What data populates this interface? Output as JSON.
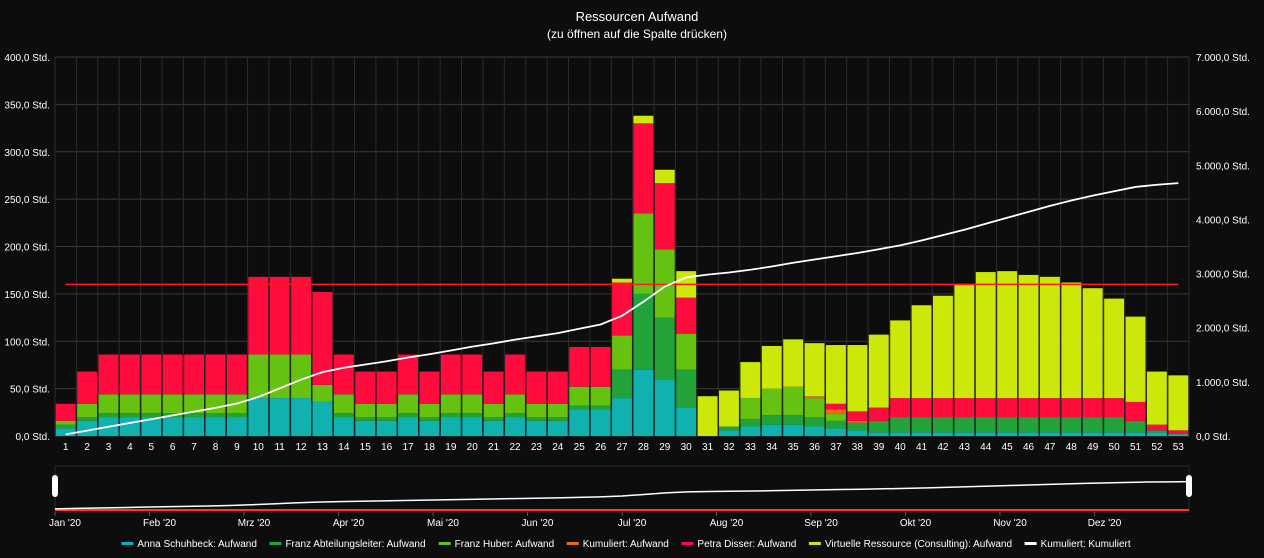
{
  "chart_data": {
    "type": "bar",
    "title": "Ressourcen Aufwand",
    "subtitle": "(zu öffnen auf die Spalte drücken)",
    "categories": [
      "1",
      "2",
      "3",
      "4",
      "5",
      "6",
      "7",
      "8",
      "9",
      "10",
      "11",
      "12",
      "13",
      "14",
      "15",
      "16",
      "17",
      "18",
      "19",
      "20",
      "21",
      "22",
      "23",
      "24",
      "25",
      "26",
      "27",
      "28",
      "29",
      "30",
      "31",
      "32",
      "33",
      "34",
      "35",
      "36",
      "37",
      "38",
      "39",
      "40",
      "41",
      "42",
      "43",
      "44",
      "45",
      "46",
      "47",
      "48",
      "49",
      "50",
      "51",
      "52",
      "53"
    ],
    "y_left": {
      "min": 0,
      "max": 400,
      "ticks": [
        {
          "value": 0,
          "label": "0,0 Std."
        },
        {
          "value": 50,
          "label": "50,0 Std."
        },
        {
          "value": 100,
          "label": "100,0 Std."
        },
        {
          "value": 150,
          "label": "150,0 Std."
        },
        {
          "value": 200,
          "label": "200,0 Std."
        },
        {
          "value": 250,
          "label": "250,0 Std."
        },
        {
          "value": 300,
          "label": "300,0 Std."
        },
        {
          "value": 350,
          "label": "350,0 Std."
        },
        {
          "value": 400,
          "label": "400,0 Std."
        }
      ]
    },
    "y_right": {
      "min": 0,
      "max": 7000,
      "ticks": [
        {
          "value": 0,
          "label": "0,0 Std."
        },
        {
          "value": 1000,
          "label": "1.000,0 Std."
        },
        {
          "value": 2000,
          "label": "2.000,0 Std."
        },
        {
          "value": 3000,
          "label": "3.000,0 Std."
        },
        {
          "value": 4000,
          "label": "4.000,0 Std."
        },
        {
          "value": 5000,
          "label": "5.000,0 Std."
        },
        {
          "value": 6000,
          "label": "6.000,0 Std."
        },
        {
          "value": 7000,
          "label": "7.000,0 Std."
        }
      ]
    },
    "grid": true,
    "stacked": true,
    "series": [
      {
        "name": "Anna Schuhbeck: Aufwand",
        "color": "#10b2b0",
        "values": [
          8,
          16,
          20,
          20,
          20,
          20,
          20,
          20,
          20,
          40,
          40,
          40,
          36,
          20,
          16,
          16,
          20,
          16,
          20,
          20,
          16,
          20,
          16,
          16,
          28,
          28,
          40,
          70,
          60,
          30,
          0,
          6,
          10,
          12,
          12,
          10,
          8,
          6,
          4,
          4,
          4,
          4,
          4,
          4,
          4,
          4,
          4,
          4,
          4,
          4,
          4,
          4,
          2
        ]
      },
      {
        "name": "Franz Abteilungsleiter: Aufwand",
        "color": "#22a33a",
        "values": [
          4,
          4,
          4,
          4,
          4,
          4,
          4,
          4,
          4,
          0,
          0,
          0,
          0,
          4,
          4,
          4,
          4,
          4,
          4,
          4,
          4,
          4,
          4,
          4,
          4,
          4,
          30,
          80,
          65,
          40,
          0,
          4,
          8,
          10,
          10,
          10,
          8,
          8,
          12,
          16,
          16,
          16,
          16,
          16,
          16,
          16,
          16,
          16,
          16,
          16,
          12,
          2,
          0
        ]
      },
      {
        "name": "Franz Huber: Aufwand",
        "color": "#66c211",
        "values": [
          4,
          14,
          20,
          20,
          20,
          20,
          20,
          20,
          20,
          46,
          46,
          46,
          18,
          20,
          14,
          14,
          20,
          14,
          20,
          20,
          14,
          20,
          14,
          14,
          20,
          20,
          36,
          85,
          72,
          38,
          0,
          0,
          22,
          28,
          30,
          20,
          8,
          0,
          0,
          0,
          0,
          0,
          0,
          0,
          0,
          0,
          0,
          0,
          0,
          0,
          0,
          0,
          0
        ]
      },
      {
        "name": "Kumuliert: Aufwand",
        "color": "#ef6b12",
        "values": [
          0,
          0,
          0,
          0,
          0,
          0,
          0,
          0,
          0,
          0,
          0,
          0,
          0,
          0,
          0,
          0,
          0,
          0,
          0,
          0,
          0,
          0,
          0,
          0,
          0,
          0,
          0,
          0,
          0,
          0,
          0,
          0,
          0,
          0,
          0,
          2,
          4,
          2,
          0,
          0,
          0,
          0,
          0,
          0,
          0,
          0,
          0,
          0,
          0,
          0,
          0,
          0,
          0
        ]
      },
      {
        "name": "Petra Disser: Aufwand",
        "color": "#ff0b3d",
        "values": [
          18,
          34,
          42,
          42,
          42,
          42,
          42,
          42,
          42,
          82,
          82,
          82,
          98,
          42,
          34,
          34,
          42,
          34,
          42,
          42,
          34,
          42,
          34,
          34,
          42,
          42,
          56,
          95,
          70,
          38,
          0,
          0,
          0,
          0,
          0,
          0,
          6,
          10,
          14,
          20,
          20,
          20,
          20,
          20,
          20,
          20,
          20,
          20,
          20,
          20,
          20,
          6,
          4
        ]
      },
      {
        "name": "Virtuelle Ressource (Consulting): Aufwand",
        "color": "#cbe809",
        "values": [
          0,
          0,
          0,
          0,
          0,
          0,
          0,
          0,
          0,
          0,
          0,
          0,
          0,
          0,
          0,
          0,
          0,
          0,
          0,
          0,
          0,
          0,
          0,
          0,
          0,
          0,
          4,
          8,
          14,
          28,
          42,
          38,
          38,
          45,
          50,
          56,
          62,
          70,
          77,
          82,
          98,
          108,
          120,
          133,
          134,
          130,
          128,
          122,
          116,
          105,
          90,
          56,
          58
        ]
      },
      {
        "name": "Kumuliert: Kumuliert",
        "color": "#ffffff",
        "type": "line",
        "axis": "right",
        "values": [
          30,
          100,
          170,
          240,
          310,
          380,
          450,
          520,
          600,
          720,
          880,
          1040,
          1180,
          1260,
          1320,
          1380,
          1450,
          1510,
          1580,
          1650,
          1710,
          1780,
          1840,
          1900,
          1980,
          2060,
          2220,
          2480,
          2760,
          2930,
          2980,
          3020,
          3070,
          3130,
          3200,
          3260,
          3320,
          3380,
          3450,
          3520,
          3610,
          3710,
          3810,
          3920,
          4030,
          4140,
          4250,
          4350,
          4440,
          4520,
          4600,
          4640,
          4670
        ]
      }
    ],
    "reference_line": {
      "value": 160,
      "axis": "left",
      "color": "#ff1a1a"
    },
    "navigator": {
      "months": [
        "Jan '20",
        "Feb '20",
        "Mrz '20",
        "Apr '20",
        "Mai '20",
        "Jun '20",
        "Jul '20",
        "Aug '20",
        "Sep '20",
        "Okt '20",
        "Nov '20",
        "Dez '20"
      ]
    },
    "legend_position": "bottom"
  }
}
